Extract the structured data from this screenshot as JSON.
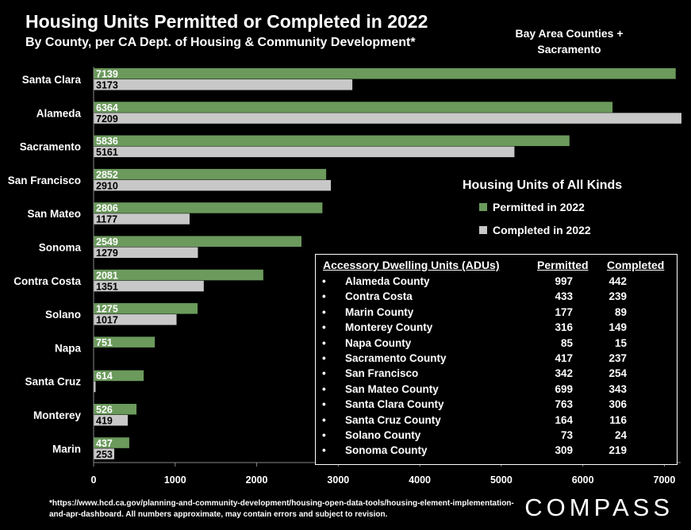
{
  "title": "Housing Units Permitted or Completed in 2022",
  "subtitle": "By County, per CA Dept. of Housing & Community Development*",
  "region_note": [
    "Bay Area Counties +",
    "Sacramento"
  ],
  "brand": "COMPASS",
  "footnote": "*https://www.hcd.ca.gov/planning-and-community-development/housing-open-data-tools/housing-element-implementation-and-apr-dashboard. All numbers approximate, may contain errors and subject to revision.",
  "colors": {
    "permitted": "#6b9a5c",
    "completed": "#c8c8c8",
    "background": "#000000"
  },
  "chart_data": {
    "type": "bar",
    "orientation": "horizontal",
    "legend_title": "Housing Units of All Kinds",
    "categories": [
      "Santa Clara",
      "Alameda",
      "Sacramento",
      "San Francisco",
      "San Mateo",
      "Sonoma",
      "Contra Costa",
      "Solano",
      "Napa",
      "Santa Cruz",
      "Monterey",
      "Marin"
    ],
    "series": [
      {
        "name": "Permitted in 2022",
        "values": [
          7139,
          6364,
          5836,
          2852,
          2806,
          2549,
          2081,
          1275,
          751,
          614,
          526,
          437
        ]
      },
      {
        "name": "Completed in 2022",
        "values": [
          3173,
          7209,
          5161,
          2910,
          1177,
          1279,
          1351,
          1017,
          0,
          24,
          419,
          253
        ]
      }
    ],
    "data_labels": {
      "permitted": [
        "7139",
        "6364",
        "5836",
        "2852",
        "2806",
        "2549",
        "2081",
        "1275",
        "751",
        "614",
        "526",
        "437"
      ],
      "completed": [
        "3173",
        "7209",
        "5161",
        "2910",
        "1177",
        "1279",
        "1351",
        "1017",
        "",
        "24",
        "419",
        "253"
      ]
    },
    "xlim": [
      0,
      7200
    ],
    "xticks": [
      0,
      1000,
      2000,
      3000,
      4000,
      5000,
      6000,
      7000
    ],
    "legend_position": "right",
    "grid": false
  },
  "adu_table": {
    "headers": [
      "Accessory Dwelling Units (ADUs)",
      "Permitted",
      "Completed"
    ],
    "rows": [
      {
        "county": "Alameda County",
        "permitted": "997",
        "completed": "442"
      },
      {
        "county": "Contra Costa",
        "permitted": "433",
        "completed": "239"
      },
      {
        "county": "Marin County",
        "permitted": "177",
        "completed": "89"
      },
      {
        "county": "Monterey County",
        "permitted": "316",
        "completed": "149"
      },
      {
        "county": "Napa County",
        "permitted": "85",
        "completed": "15"
      },
      {
        "county": "Sacramento County",
        "permitted": "417",
        "completed": "237"
      },
      {
        "county": "San Francisco",
        "permitted": "342",
        "completed": "254"
      },
      {
        "county": "San Mateo County",
        "permitted": "699",
        "completed": "343"
      },
      {
        "county": "Santa Clara County",
        "permitted": "763",
        "completed": "306"
      },
      {
        "county": "Santa Cruz County",
        "permitted": "164",
        "completed": "116"
      },
      {
        "county": "Solano County",
        "permitted": "73",
        "completed": "24"
      },
      {
        "county": "Sonoma County",
        "permitted": "309",
        "completed": "219"
      }
    ]
  }
}
